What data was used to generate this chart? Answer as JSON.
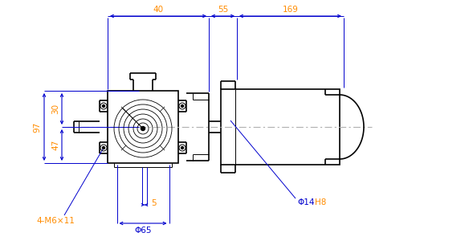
{
  "bg_color": "#ffffff",
  "lc": "#000000",
  "dc": "#0000cd",
  "oc": "#ff8c00",
  "cc": "#b0b0b0",
  "dim_40": "40",
  "dim_55": "55",
  "dim_169": "169",
  "dim_97": "97",
  "dim_30": "30",
  "dim_47": "47",
  "dim_5": "5",
  "dim_phi65": "Φ65",
  "dim_phi14h8_phi": "Φ14",
  "dim_phi14h8_h8": "H8",
  "dim_4m6x11": "4-M6×11",
  "figsize": [
    5.89,
    3.05
  ],
  "dpi": 100
}
